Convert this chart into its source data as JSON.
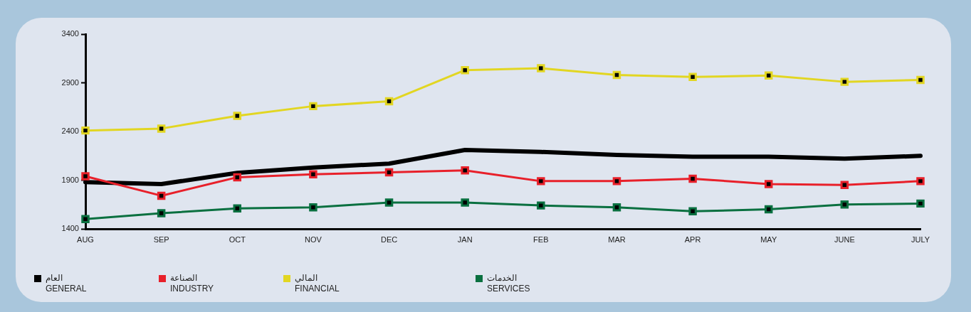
{
  "chart_data": {
    "type": "line",
    "categories": [
      "AUG",
      "SEP",
      "OCT",
      "NOV",
      "DEC",
      "JAN",
      "FEB",
      "MAR",
      "APR",
      "MAY",
      "JUNE",
      "JULY"
    ],
    "ylim": [
      1400,
      3400
    ],
    "yticks": [
      1400,
      1900,
      2400,
      2900,
      3400
    ],
    "grid": false,
    "legend": "bottom left",
    "marker": "square",
    "series": [
      {
        "name": "العام\nGENERAL",
        "color": "#000000",
        "marker": "none",
        "values": [
          1880,
          1860,
          1975,
          2030,
          2070,
          2210,
          2190,
          2160,
          2140,
          2140,
          2120,
          2150
        ]
      },
      {
        "name": "الصناعة\nINDUSTRY",
        "color": "#e8202a",
        "values": [
          1940,
          1740,
          1930,
          1960,
          1980,
          2000,
          1890,
          1890,
          1915,
          1860,
          1850,
          1890
        ]
      },
      {
        "name": "المالي\nFINANCIAL",
        "color": "#e2d622",
        "values": [
          2410,
          2430,
          2560,
          2660,
          2710,
          3030,
          3050,
          2980,
          2960,
          2975,
          2910,
          2930
        ]
      },
      {
        "name": "الخدمات\nSERVICES",
        "color": "#0a7040",
        "values": [
          1500,
          1560,
          1610,
          1620,
          1670,
          1670,
          1640,
          1620,
          1580,
          1600,
          1650,
          1660
        ]
      }
    ]
  }
}
